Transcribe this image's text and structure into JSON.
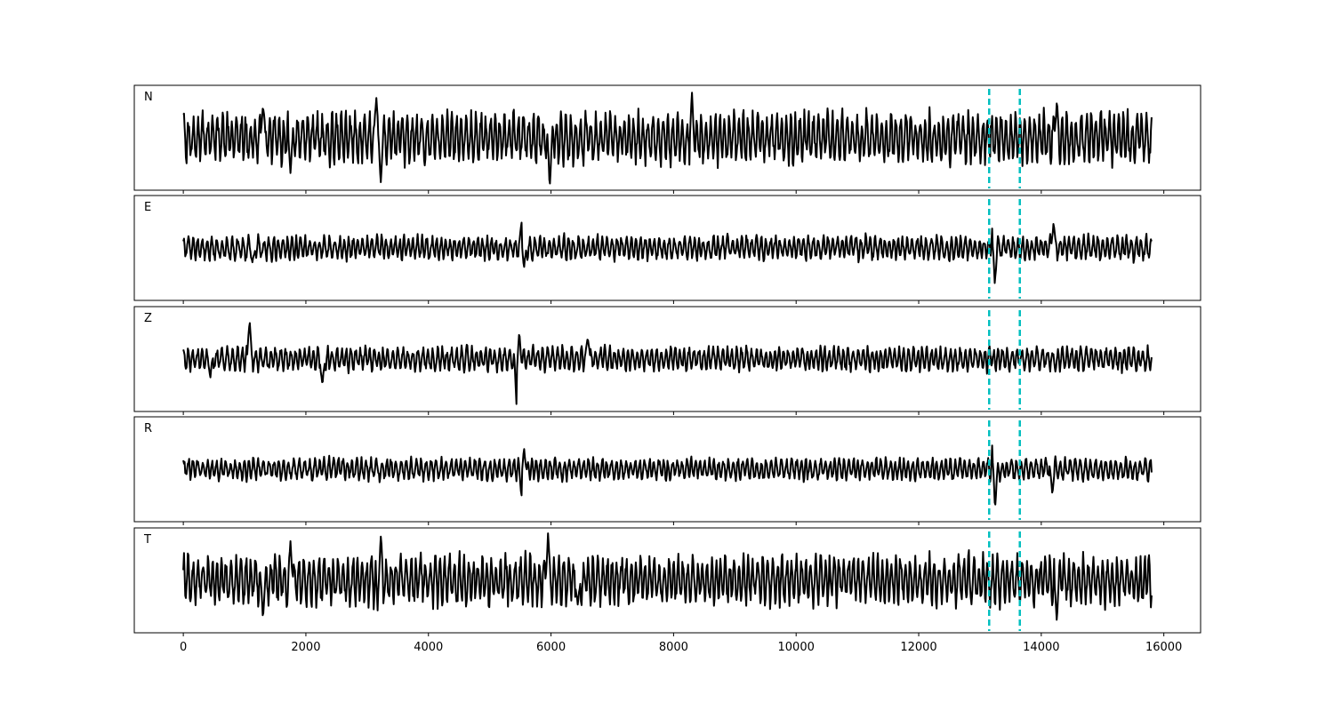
{
  "chart_data": {
    "type": "line",
    "title": "",
    "xlabel": "",
    "ylabel": "",
    "xlim": [
      -800,
      16600
    ],
    "x_ticks": [
      0,
      2000,
      4000,
      6000,
      8000,
      10000,
      12000,
      14000,
      16000
    ],
    "x_tick_labels": [
      "0",
      "2000",
      "4000",
      "6000",
      "8000",
      "10000",
      "12000",
      "14000",
      "16000"
    ],
    "x_range": [
      0,
      15800
    ],
    "grid": false,
    "legend": "none",
    "trace_color": "#000000",
    "marker_color": "#00bfbf",
    "markers_x": [
      13150,
      13650
    ],
    "panels": [
      {
        "label": "N",
        "amplitude": 0.62,
        "events": [
          [
            3150,
            1.0
          ],
          [
            3220,
            -0.9
          ],
          [
            5980,
            -0.95
          ],
          [
            8300,
            0.8
          ],
          [
            14250,
            0.75
          ],
          [
            1750,
            -0.65
          ],
          [
            1300,
            0.75
          ]
        ]
      },
      {
        "label": "E",
        "amplitude": 0.3,
        "events": [
          [
            13220,
            0.95
          ],
          [
            13240,
            -0.9
          ],
          [
            5520,
            0.55
          ],
          [
            5560,
            -0.45
          ],
          [
            14200,
            0.55
          ],
          [
            1130,
            -0.35
          ]
        ]
      },
      {
        "label": "Z",
        "amplitude": 0.3,
        "events": [
          [
            1080,
            0.9
          ],
          [
            5440,
            -1.0
          ],
          [
            5480,
            0.55
          ],
          [
            6600,
            0.55
          ],
          [
            2270,
            -0.6
          ],
          [
            440,
            -0.35
          ]
        ]
      },
      {
        "label": "R",
        "amplitude": 0.27,
        "events": [
          [
            13220,
            1.0
          ],
          [
            13245,
            -0.95
          ],
          [
            5520,
            -0.55
          ],
          [
            5560,
            0.45
          ],
          [
            14180,
            -0.5
          ]
        ]
      },
      {
        "label": "T",
        "amplitude": 0.62,
        "events": [
          [
            5950,
            1.0
          ],
          [
            3180,
            -0.8
          ],
          [
            3220,
            0.9
          ],
          [
            14250,
            -0.75
          ],
          [
            1750,
            0.8
          ],
          [
            1300,
            -0.7
          ],
          [
            6440,
            -0.65
          ]
        ]
      }
    ]
  }
}
